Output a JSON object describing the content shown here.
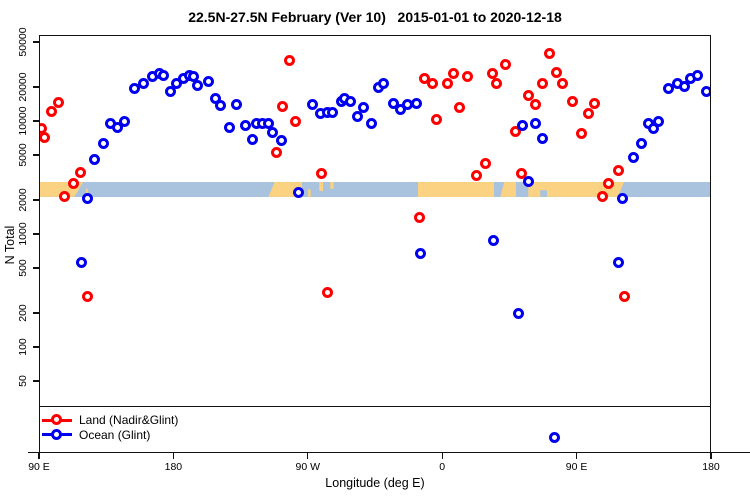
{
  "title": "22.5N-27.5N February (Ver 10)   2015-01-01 to 2020-12-18",
  "axes": {
    "x": {
      "label": "Longitude (deg E)",
      "ticks": [
        {
          "lon": 90,
          "label": "90 E"
        },
        {
          "lon": 180,
          "label": "180"
        },
        {
          "lon": 270,
          "label": "90 W"
        },
        {
          "lon": 360,
          "label": "0"
        },
        {
          "lon": 450,
          "label": "90 E"
        },
        {
          "lon": 540,
          "label": "180"
        }
      ]
    },
    "y": {
      "label": "N Total",
      "ticks": [
        50000,
        20000,
        10000,
        5000,
        2000,
        1000,
        500,
        200,
        100,
        50
      ]
    }
  },
  "legend": {
    "items": [
      {
        "label": "Land (Nadir&Glint)",
        "color": "#ff0000"
      },
      {
        "label": "Ocean (Glint)",
        "color": "#0000ee"
      }
    ]
  },
  "colors": {
    "land_strip": "#fbd282",
    "ocean_strip": "#a9c2dd",
    "axis": "#111111",
    "background": "#ffffff"
  },
  "chart_data": {
    "type": "scatter",
    "title": "22.5N-27.5N February (Ver 10)   2015-01-01 to 2020-12-18",
    "xlabel": "Longitude (deg E)",
    "ylabel": "N Total",
    "x_axis": {
      "domain": [
        90,
        540
      ],
      "note": "degrees east wrapping: 90E, 180, 90W, 0, 90E, 180"
    },
    "y_axis": {
      "scale": "log",
      "domain_top": 57700,
      "domain_bottom": 11.5
    },
    "series": [
      {
        "name": "Land (Nadir&Glint)",
        "color": "#ff0000",
        "points": [
          [
            90.7,
            8700
          ],
          [
            93.3,
            7360
          ],
          [
            98.0,
            12500
          ],
          [
            102.1,
            15000
          ],
          [
            106.7,
            2210
          ],
          [
            112.1,
            2830
          ],
          [
            116.8,
            3540
          ],
          [
            121.5,
            283
          ],
          [
            248.7,
            5420
          ],
          [
            252.7,
            13800
          ],
          [
            257.4,
            34700
          ],
          [
            261.4,
            10000
          ],
          [
            278.8,
            3470
          ],
          [
            282.2,
            307
          ],
          [
            343.8,
            1440
          ],
          [
            347.8,
            24500
          ],
          [
            352.5,
            21700
          ],
          [
            355.8,
            10600
          ],
          [
            362.6,
            22100
          ],
          [
            366.6,
            26600
          ],
          [
            371.2,
            13300
          ],
          [
            376.6,
            25500
          ],
          [
            382.6,
            3330
          ],
          [
            388.0,
            4250
          ],
          [
            392.7,
            26600
          ],
          [
            396.0,
            21700
          ],
          [
            401.4,
            32600
          ],
          [
            408.1,
            8320
          ],
          [
            412.1,
            3470
          ],
          [
            416.8,
            17000
          ],
          [
            421.5,
            14400
          ],
          [
            426.8,
            21700
          ],
          [
            431.5,
            40000
          ],
          [
            436.2,
            27200
          ],
          [
            440.2,
            22100
          ],
          [
            446.9,
            15300
          ],
          [
            452.3,
            7830
          ],
          [
            457.0,
            12000
          ],
          [
            461.0,
            14700
          ],
          [
            467.0,
            2210
          ],
          [
            471.0,
            2880
          ],
          [
            477.1,
            3690
          ],
          [
            481.1,
            283
          ]
        ]
      },
      {
        "name": "Ocean (Glint)",
        "color": "#0000ee",
        "points": [
          [
            118.1,
            565
          ],
          [
            121.5,
            2120
          ],
          [
            126.8,
            4700
          ],
          [
            132.2,
            6510
          ],
          [
            136.9,
            9790
          ],
          [
            142.2,
            8850
          ],
          [
            146.9,
            10200
          ],
          [
            153.6,
            19600
          ],
          [
            159.0,
            22100
          ],
          [
            165.0,
            25500
          ],
          [
            169.7,
            26600
          ],
          [
            173.0,
            26000
          ],
          [
            177.1,
            18800
          ],
          [
            181.7,
            21700
          ],
          [
            185.8,
            24500
          ],
          [
            189.8,
            26000
          ],
          [
            193.1,
            25500
          ],
          [
            195.8,
            21200
          ],
          [
            202.5,
            22600
          ],
          [
            207.2,
            16300
          ],
          [
            211.2,
            14100
          ],
          [
            217.2,
            8850
          ],
          [
            221.9,
            14400
          ],
          [
            227.3,
            9220
          ],
          [
            232.6,
            6930
          ],
          [
            235.3,
            9600
          ],
          [
            239.3,
            9790
          ],
          [
            242.7,
            9600
          ],
          [
            246.0,
            8000
          ],
          [
            252.0,
            6790
          ],
          [
            262.8,
            2360
          ],
          [
            272.8,
            14400
          ],
          [
            277.5,
            12000
          ],
          [
            282.2,
            12200
          ],
          [
            286.2,
            12200
          ],
          [
            292.2,
            15300
          ],
          [
            294.2,
            16300
          ],
          [
            297.6,
            15300
          ],
          [
            302.3,
            11100
          ],
          [
            306.3,
            13300
          ],
          [
            311.7,
            9790
          ],
          [
            316.4,
            20000
          ],
          [
            319.7,
            21700
          ],
          [
            326.4,
            14700
          ],
          [
            331.1,
            13000
          ],
          [
            336.4,
            14400
          ],
          [
            341.8,
            14700
          ],
          [
            344.5,
            679
          ],
          [
            394.0,
            885
          ],
          [
            410.1,
            200
          ],
          [
            412.8,
            9220
          ],
          [
            416.8,
            3000
          ],
          [
            421.5,
            9790
          ],
          [
            426.8,
            7080
          ],
          [
            434.8,
            16
          ],
          [
            477.7,
            565
          ],
          [
            480.4,
            2120
          ],
          [
            487.1,
            4800
          ],
          [
            492.5,
            6510
          ],
          [
            497.2,
            9790
          ],
          [
            500.5,
            8700
          ],
          [
            504.5,
            10200
          ],
          [
            511.2,
            19600
          ],
          [
            517.2,
            21700
          ],
          [
            521.9,
            20800
          ],
          [
            525.3,
            24500
          ],
          [
            530.6,
            26000
          ],
          [
            536.0,
            18800
          ]
        ]
      }
    ],
    "strip": {
      "description": "land/ocean map band for 22.5N-27.5N latitude belt",
      "y_range": [
        2940,
        2170
      ],
      "land_segments": [
        {
          "from": 90,
          "to": 119,
          "clip": "polygon(0 0, 100% 0, 79% 100%, 0 100%)"
        },
        {
          "from": 120.6,
          "to": 122,
          "clip": "polygon(0 45%, 100% 45%, 100% 100%, 0 100%)"
        },
        {
          "from": 243,
          "to": 265.5,
          "clip": "polygon(18% 0, 100% 0, 100% 100%, 0 100%)"
        },
        {
          "from": 269.5,
          "to": 271.2,
          "clip": "polygon(0 50%, 100% 50%, 100% 100%, 0 100%)"
        },
        {
          "from": 277,
          "to": 279.6,
          "clip": "polygon(0 0, 100% 0, 100% 60%, 0 60%)"
        },
        {
          "from": 284.4,
          "to": 286.6,
          "clip": "polygon(0 0, 100% 0, 100% 45%, 0 45%)"
        },
        {
          "from": 343,
          "to": 394,
          "clip": null
        },
        {
          "from": 398.2,
          "to": 409,
          "clip": "polygon(25% 0, 100% 0, 100% 100%, 0 100%)"
        },
        {
          "from": 417,
          "to": 481,
          "clip": "polygon(0 0, 100% 0, 94% 100%, 0 100%)"
        }
      ],
      "ocean_patches": [
        {
          "from": 425,
          "to": 429.5,
          "clip": "polygon(0 55%, 100% 55%, 100% 100%, 0 100%)"
        }
      ]
    }
  }
}
